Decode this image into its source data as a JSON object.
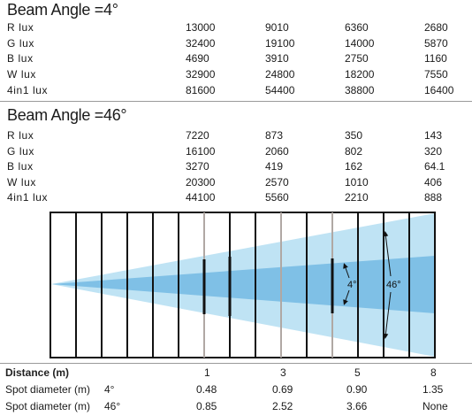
{
  "sections": [
    {
      "title": "Beam Angle =4°",
      "rows": [
        {
          "label": "R lux",
          "values": [
            "13000",
            "9010",
            "6360",
            "2680"
          ]
        },
        {
          "label": "G lux",
          "values": [
            "32400",
            "19100",
            "14000",
            "5870"
          ]
        },
        {
          "label": "B lux",
          "values": [
            "4690",
            "3910",
            "2750",
            "1160"
          ]
        },
        {
          "label": "W lux",
          "values": [
            "32900",
            "24800",
            "18200",
            "7550"
          ]
        },
        {
          "label": "4in1 lux",
          "values": [
            "81600",
            "54400",
            "38800",
            "16400"
          ]
        }
      ]
    },
    {
      "title": "Beam Angle =46°",
      "rows": [
        {
          "label": "R lux",
          "values": [
            "7220",
            "873",
            "350",
            "143"
          ]
        },
        {
          "label": "G lux",
          "values": [
            "16100",
            "2060",
            "802",
            "320"
          ]
        },
        {
          "label": "B lux",
          "values": [
            "3270",
            "419",
            "162",
            "64.1"
          ]
        },
        {
          "label": "W lux",
          "values": [
            "20300",
            "2570",
            "1010",
            "406"
          ]
        },
        {
          "label": "4in1 lux",
          "values": [
            "44100",
            "5560",
            "2210",
            "888"
          ]
        }
      ]
    }
  ],
  "diagram": {
    "narrow_label": "4°",
    "wide_label": "46°",
    "colors": {
      "wide_beam": "#bfe3f4",
      "narrow_beam": "#7fc0e6",
      "frame": "#111111",
      "marker_line": "#b0a8a4"
    }
  },
  "distance": {
    "label": "Distance (m)",
    "values": [
      "1",
      "3",
      "5",
      "8"
    ]
  },
  "spot_4": {
    "label": "Spot diameter  (m)",
    "angle": "4°",
    "values": [
      "0.48",
      "0.69",
      "0.90",
      "1.35"
    ]
  },
  "spot_46": {
    "label": "Spot diameter  (m)",
    "angle": "46°",
    "values": [
      "0.85",
      "2.52",
      "3.66",
      "None"
    ]
  }
}
